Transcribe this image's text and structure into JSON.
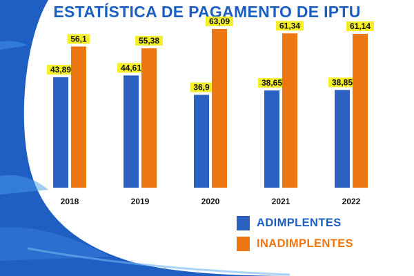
{
  "title": "ESTATÍSTICA DE PAGAMENTO DE IPTU",
  "colors": {
    "adimplentes": "#2b61c0",
    "inadimplentes": "#ec7612",
    "label_highlight": "#f5ef2a",
    "title": "#1c5fc2",
    "background_blue": "#1f5fc4"
  },
  "chart_data": {
    "type": "bar",
    "title": "ESTATÍSTICA DE PAGAMENTO DE IPTU",
    "categories": [
      "2018",
      "2019",
      "2020",
      "2021",
      "2022"
    ],
    "series": [
      {
        "name": "ADIMPLENTES",
        "values": [
          43.89,
          44.61,
          36.9,
          38.65,
          38.85
        ],
        "labels": [
          "43,89",
          "44,61",
          "36,9",
          "38,65",
          "38,85"
        ]
      },
      {
        "name": "INADIMPLENTES",
        "values": [
          56.1,
          55.38,
          63.09,
          61.34,
          61.14
        ],
        "labels": [
          "56,1",
          "55,38",
          "63,09",
          "61,34",
          "61,14"
        ]
      }
    ],
    "ylim": [
      0,
      65
    ],
    "xlabel": "",
    "ylabel": "",
    "grid": false,
    "legend_position": "bottom-right"
  }
}
